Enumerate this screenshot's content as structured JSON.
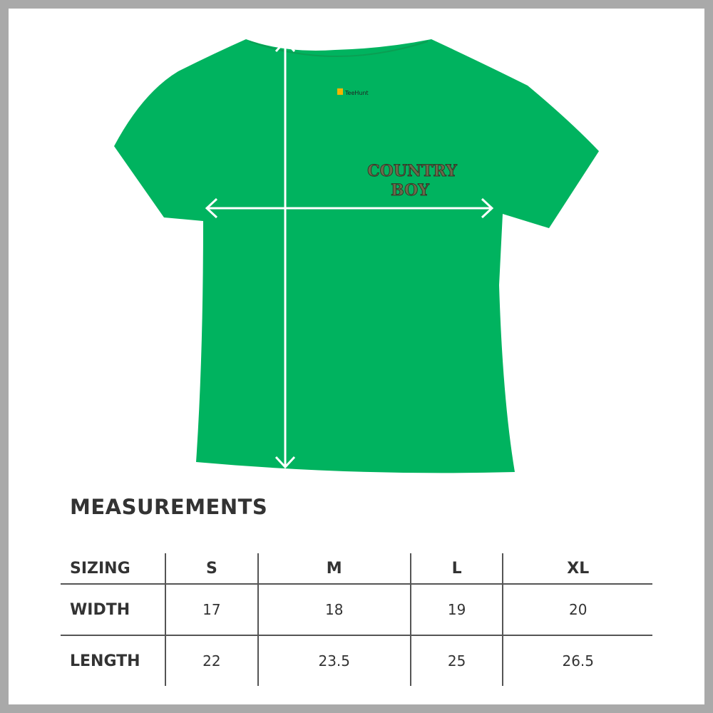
{
  "brand_tag": "TeeHunt",
  "print_text": [
    "COUNTRY",
    "BOY"
  ],
  "shirt_color": "#00b35f",
  "heading": "MEASUREMENTS",
  "table": {
    "header": [
      "SIZING",
      "S",
      "M",
      "L",
      "XL"
    ],
    "rows": [
      [
        "WIDTH",
        "17",
        "18",
        "19",
        "20"
      ],
      [
        "LENGTH",
        "22",
        "23.5",
        "25",
        "26.5"
      ]
    ]
  }
}
